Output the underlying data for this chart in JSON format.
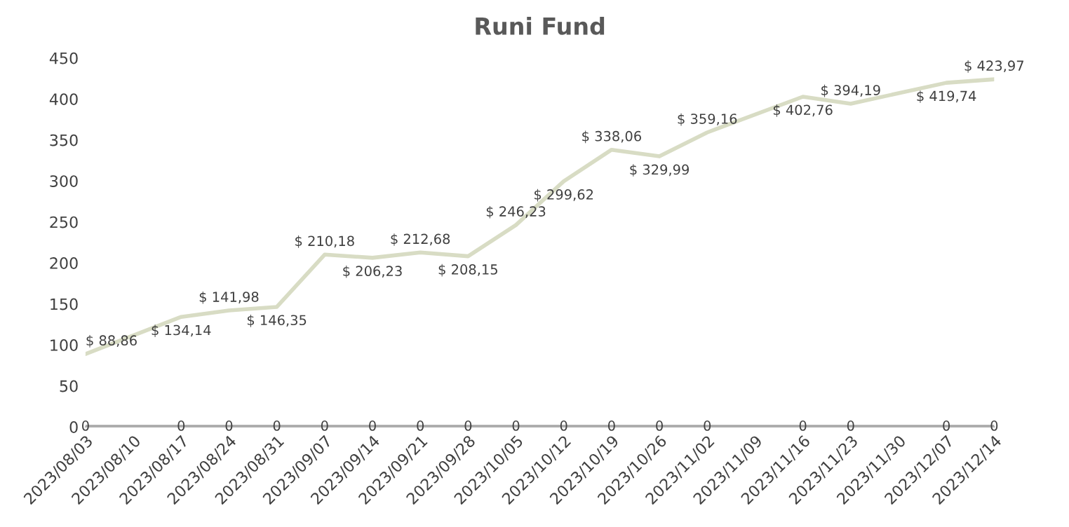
{
  "chart_data": {
    "type": "line",
    "title": "Runi Fund",
    "x": [
      "2023-08-03",
      "2023-08-17",
      "2023-08-24",
      "2023-08-31",
      "2023-09-07",
      "2023-09-14",
      "2023-09-21",
      "2023-09-28",
      "2023-10-05",
      "2023-10-12",
      "2023-10-19",
      "2023-10-26",
      "2023-11-02",
      "2023-11-16",
      "2023-11-23",
      "2023-12-07",
      "2023-12-14"
    ],
    "series": [
      {
        "color": "#d8dcc4",
        "values": [
          88.86,
          134.14,
          141.98,
          146.35,
          210.18,
          206.23,
          212.68,
          208.15,
          246.23,
          299.62,
          338.06,
          329.99,
          359.16,
          402.76,
          394.19,
          419.74,
          423.97
        ],
        "value_labels": [
          "$ 88,86",
          "$ 134,14",
          "$ 141,98",
          "$ 146,35",
          "$ 210,18",
          "$ 206,23",
          "$ 212,68",
          "$ 208,15",
          "$ 246,23",
          "$ 299,62",
          "$ 338,06",
          "$ 329,99",
          "$ 359,16",
          "$ 402,76",
          "$ 394,19",
          "$ 419,74",
          "$ 423,97"
        ]
      },
      {
        "color": "#a6a6a6",
        "values": [
          0,
          0,
          0,
          0,
          0,
          0,
          0,
          0,
          0,
          0,
          0,
          0,
          0,
          0,
          0,
          0,
          0
        ],
        "value_labels": [
          "0",
          "0",
          "0",
          "0",
          "0",
          "0",
          "0",
          "0",
          "0",
          "0",
          "0",
          "0",
          "0",
          "0",
          "0",
          "0",
          "0"
        ]
      }
    ],
    "xlim": [
      "2023-08-03",
      "2023-12-14"
    ],
    "xticks": [
      {
        "value": "2023-08-03",
        "label": "2023/08/03"
      },
      {
        "value": "2023-08-10",
        "label": "2023/08/10"
      },
      {
        "value": "2023-08-17",
        "label": "2023/08/17"
      },
      {
        "value": "2023-08-24",
        "label": "2023/08/24"
      },
      {
        "value": "2023-08-31",
        "label": "2023/08/31"
      },
      {
        "value": "2023-09-07",
        "label": "2023/09/07"
      },
      {
        "value": "2023-09-14",
        "label": "2023/09/14"
      },
      {
        "value": "2023-09-21",
        "label": "2023/09/21"
      },
      {
        "value": "2023-09-28",
        "label": "2023/09/28"
      },
      {
        "value": "2023-10-05",
        "label": "2023/10/05"
      },
      {
        "value": "2023-10-12",
        "label": "2023/10/12"
      },
      {
        "value": "2023-10-19",
        "label": "2023/10/19"
      },
      {
        "value": "2023-10-26",
        "label": "2023/10/26"
      },
      {
        "value": "2023-11-02",
        "label": "2023/11/02"
      },
      {
        "value": "2023-11-09",
        "label": "2023/11/09"
      },
      {
        "value": "2023-11-16",
        "label": "2023/11/16"
      },
      {
        "value": "2023-11-23",
        "label": "2023/11/23"
      },
      {
        "value": "2023-11-30",
        "label": "2023/11/30"
      },
      {
        "value": "2023-12-07",
        "label": "2023/12/07"
      },
      {
        "value": "2023-12-14",
        "label": "2023/12/14"
      }
    ],
    "ylim": [
      0,
      450
    ],
    "yticks": [
      0,
      50,
      100,
      150,
      200,
      250,
      300,
      350,
      400,
      450
    ],
    "grid": false,
    "marker": "none",
    "line_style": "solid"
  }
}
